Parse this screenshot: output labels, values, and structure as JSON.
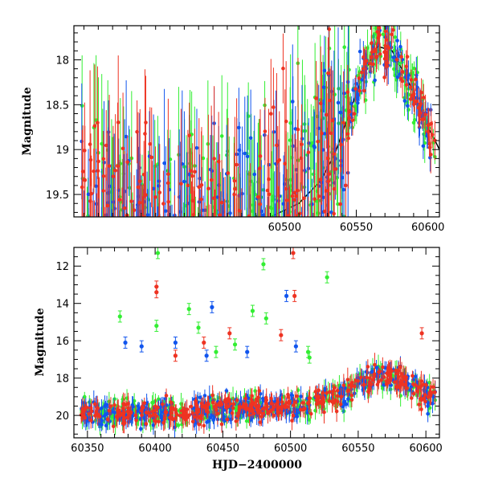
{
  "colors": {
    "green": "#33ee33",
    "blue": "#1155ee",
    "red": "#ee3322",
    "model": "#000000"
  },
  "chart_data": [
    {
      "type": "scatter",
      "ylabel": "Magnitude",
      "xlabel": "",
      "xlim": [
        60353,
        60608
      ],
      "ylim": [
        19.75,
        17.62
      ],
      "y_inverted": true,
      "x_ticks": [
        60500,
        60550,
        60600
      ],
      "y_ticks": [
        18,
        18.5,
        19,
        19.5
      ],
      "x_tick_labels": [
        "60500",
        "60550",
        "60600"
      ],
      "y_tick_labels": [
        "18",
        "18.5",
        "19",
        "19.5"
      ],
      "x_minor_step": 10,
      "y_minor_step": 0.1,
      "model_curve": {
        "color": "#000000",
        "x": [
          60470,
          60490,
          60510,
          60525,
          60535,
          60545,
          60555,
          60565,
          60575,
          60585,
          60595,
          60600,
          60605,
          60608
        ],
        "y": [
          19.9,
          19.75,
          19.6,
          19.35,
          19.05,
          18.6,
          18.15,
          17.85,
          17.9,
          18.2,
          18.55,
          18.75,
          18.9,
          19.0
        ]
      }
    },
    {
      "type": "scatter",
      "ylabel": "Magnitude",
      "xlabel": "HJD−2400000",
      "xlim": [
        60340,
        60610
      ],
      "ylim": [
        21.2,
        11.0
      ],
      "y_inverted": true,
      "x_ticks": [
        60350,
        60400,
        60450,
        60500,
        60550,
        60600
      ],
      "y_ticks": [
        12,
        14,
        16,
        18,
        20
      ],
      "x_tick_labels": [
        "60350",
        "60400",
        "60450",
        "60500",
        "60550",
        "60600"
      ],
      "y_tick_labels": [
        "12",
        "14",
        "16",
        "18",
        "20"
      ],
      "x_minor_step": 10,
      "y_minor_step": 0.5,
      "outliers": [
        {
          "band": "green",
          "x": [
            60402,
            60480,
            60527,
            60472,
            60374,
            60401,
            60425,
            60432,
            60482,
            60514,
            60513,
            60459,
            60445
          ],
          "y": [
            11.3,
            11.9,
            12.6,
            14.4,
            14.7,
            15.2,
            14.3,
            15.3,
            14.8,
            16.9,
            16.6,
            16.2,
            16.6
          ]
        },
        {
          "band": "blue",
          "x": [
            60497,
            60442,
            60378,
            60390,
            60415,
            60438,
            60468,
            60504
          ],
          "y": [
            13.6,
            14.2,
            16.1,
            16.3,
            16.1,
            16.8,
            16.6,
            16.3
          ]
        },
        {
          "band": "red",
          "x": [
            60401,
            60401,
            60502,
            60503,
            60597,
            60455,
            60493,
            60415,
            60436
          ],
          "y": [
            13.1,
            13.4,
            11.3,
            13.6,
            15.6,
            15.6,
            15.7,
            16.8,
            16.1
          ]
        }
      ],
      "baseline": {
        "x": [
          60360,
          60380,
          60400,
          60420,
          60440,
          60460,
          60480,
          60500,
          60520,
          60540,
          60550,
          60560,
          60570,
          60580,
          60590,
          60600,
          60605
        ],
        "y": [
          19.9,
          19.9,
          19.9,
          19.85,
          19.7,
          19.6,
          19.6,
          19.55,
          19.3,
          18.9,
          18.4,
          18.0,
          17.85,
          18.0,
          18.45,
          18.9,
          19.1
        ]
      }
    }
  ]
}
